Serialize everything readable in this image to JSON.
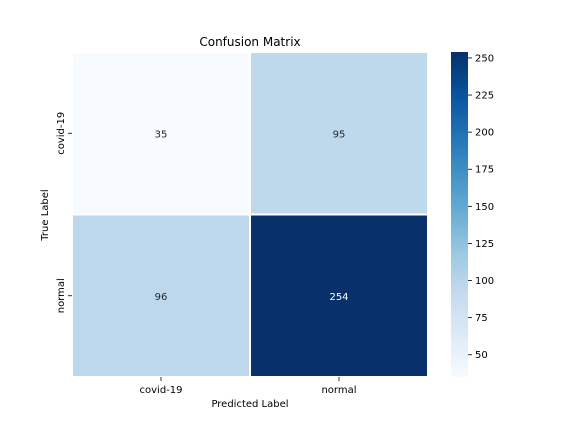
{
  "chart_data": {
    "type": "heatmap",
    "title": "Confusion Matrix",
    "xlabel": "Predicted Label",
    "ylabel": "True Label",
    "x_categories": [
      "covid-19",
      "normal"
    ],
    "y_categories": [
      "covid-19",
      "normal"
    ],
    "values": [
      [
        35,
        95
      ],
      [
        96,
        254
      ]
    ],
    "colormap": "Blues",
    "colorbar": {
      "range": [
        35,
        254
      ],
      "ticks": [
        "50",
        "75",
        "100",
        "125",
        "150",
        "175",
        "200",
        "225",
        "250"
      ]
    },
    "grid": false
  }
}
